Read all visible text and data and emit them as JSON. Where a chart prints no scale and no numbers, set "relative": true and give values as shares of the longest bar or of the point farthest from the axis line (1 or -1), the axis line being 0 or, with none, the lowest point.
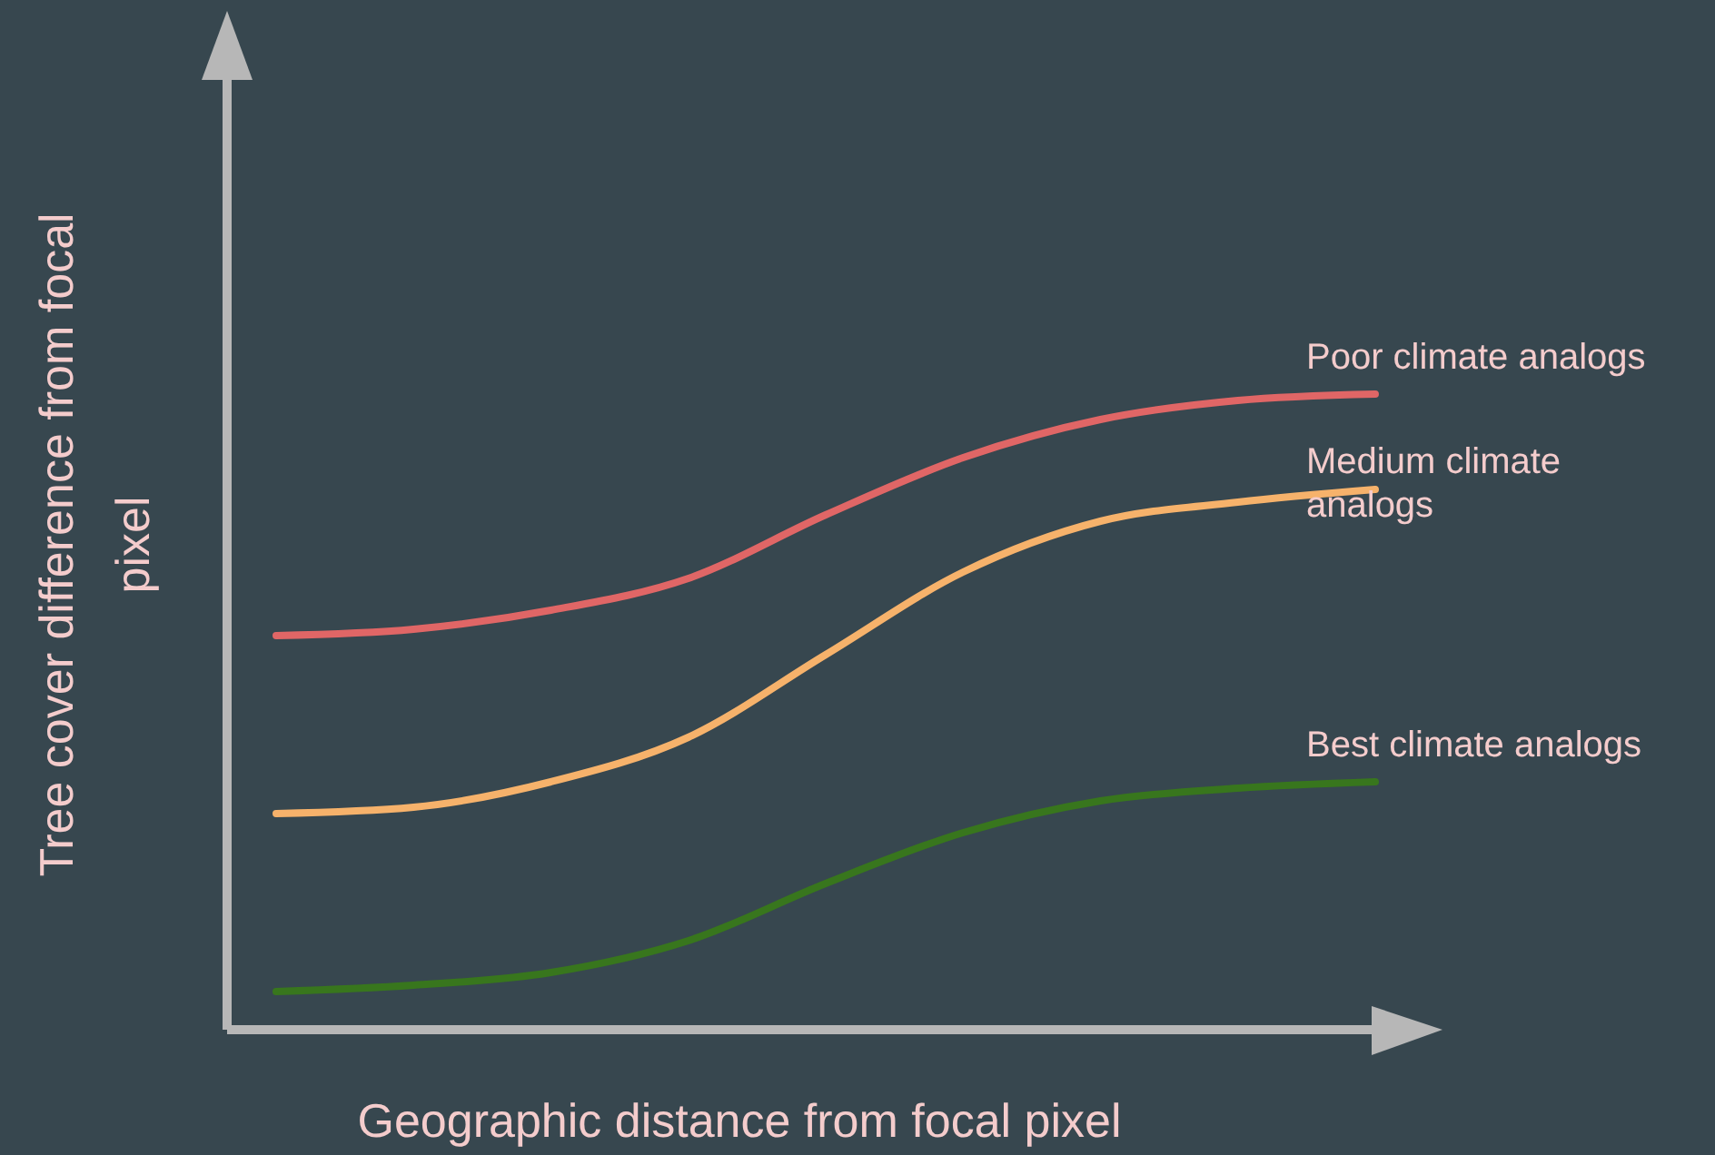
{
  "chart_data": {
    "type": "line",
    "relative": true,
    "xlabel": "Geographic distance from focal pixel",
    "ylabel": "Tree cover difference from focal pixel",
    "categories": [
      null,
      null,
      null,
      null,
      null,
      null,
      null,
      null,
      null
    ],
    "marker": "none",
    "line_style": "solid",
    "series": [
      {
        "name": "Poor climate analogs",
        "color": "#e06666",
        "values": [
          0.62,
          0.63,
          0.66,
          0.71,
          0.81,
          0.9,
          0.96,
          0.99,
          1
        ]
      },
      {
        "name": "Medium climate analogs",
        "color": "#f6b26b",
        "values": [
          0.34,
          0.35,
          0.39,
          0.46,
          0.59,
          0.72,
          0.8,
          0.83,
          0.85
        ]
      },
      {
        "name": "Best climate analogs",
        "color": "#38761d",
        "values": [
          0.06,
          0.07,
          0.09,
          0.14,
          0.23,
          0.31,
          0.36,
          0.38,
          0.39
        ]
      }
    ]
  }
}
